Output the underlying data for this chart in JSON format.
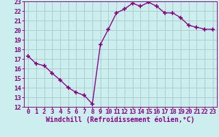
{
  "x": [
    0,
    1,
    2,
    3,
    4,
    5,
    6,
    7,
    8,
    9,
    10,
    11,
    12,
    13,
    14,
    15,
    16,
    17,
    18,
    19,
    20,
    21,
    22,
    23
  ],
  "y": [
    17.3,
    16.5,
    16.3,
    15.5,
    14.8,
    14.0,
    13.5,
    13.2,
    12.3,
    18.5,
    20.1,
    21.8,
    22.2,
    22.8,
    22.5,
    22.9,
    22.5,
    21.8,
    21.8,
    21.3,
    20.5,
    20.3,
    20.1,
    20.1
  ],
  "line_color": "#880088",
  "marker": "+",
  "marker_size": 4,
  "bg_color": "#cceeee",
  "grid_color": "#aacccc",
  "xlabel": "Windchill (Refroidissement éolien,°C)",
  "xlim_min": -0.5,
  "xlim_max": 23.5,
  "ylim_min": 12,
  "ylim_max": 23,
  "xticks": [
    0,
    1,
    2,
    3,
    4,
    5,
    6,
    7,
    8,
    9,
    10,
    11,
    12,
    13,
    14,
    15,
    16,
    17,
    18,
    19,
    20,
    21,
    22,
    23
  ],
  "yticks": [
    12,
    13,
    14,
    15,
    16,
    17,
    18,
    19,
    20,
    21,
    22,
    23
  ],
  "tick_color": "#880088",
  "xlabel_color": "#880088",
  "xlabel_fontsize": 7.0,
  "tick_fontsize": 6.5,
  "line_width": 1.0
}
